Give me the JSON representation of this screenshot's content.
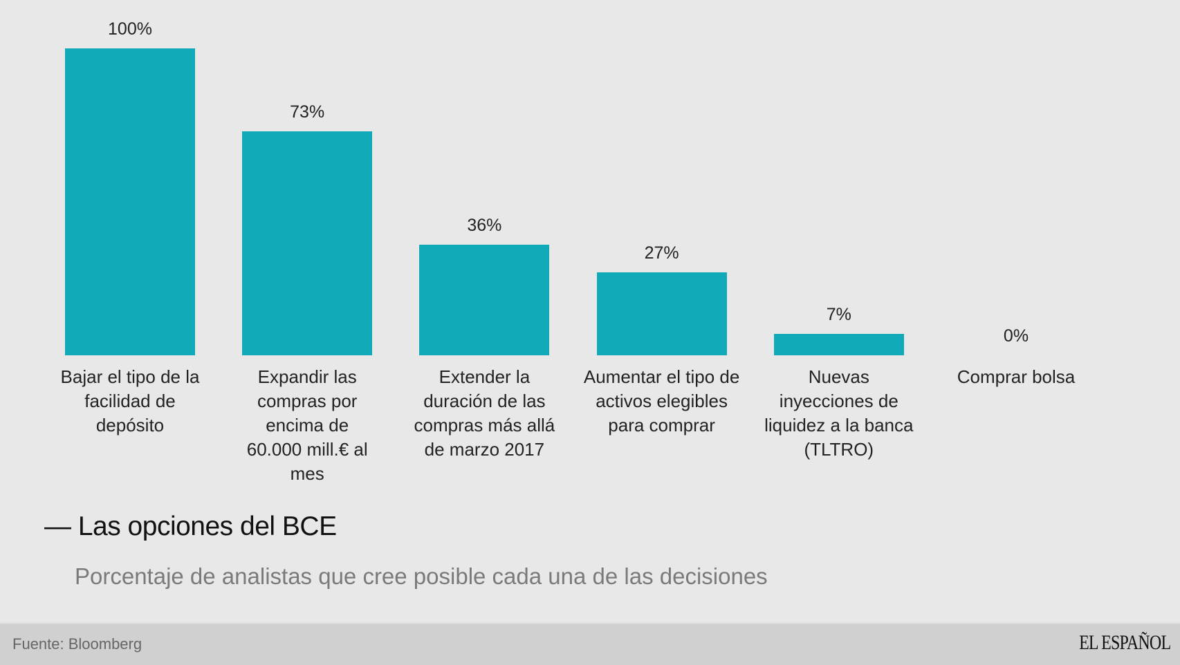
{
  "chart_data": {
    "type": "bar",
    "title": "Las opciones del BCE",
    "subtitle": "Porcentaje de analistas que cree posible cada una de las decisiones",
    "categories": [
      "Bajar el tipo de la facilidad de depósito",
      "Expandir las compras por encima de 60.000 mill.€ al mes",
      "Extender la duración de las compras más allá de marzo 2017",
      "Aumentar el tipo de activos elegibles para comprar",
      "Nuevas inyecciones de liquidez a la banca (TLTRO)",
      "Comprar bolsa"
    ],
    "values": [
      100,
      73,
      36,
      27,
      7,
      0
    ],
    "value_labels": [
      "100%",
      "73%",
      "36%",
      "27%",
      "7%",
      "0%"
    ],
    "ylim": [
      0,
      100
    ],
    "grid": false,
    "bar_color": "#10a9b8"
  },
  "header": {
    "title_dash": "—"
  },
  "footer": {
    "source": "Fuente: Bloomberg",
    "logo": "EL ESPAÑOL"
  },
  "colors": {
    "background": "#e8e8e8",
    "footer": "#d0d0d0"
  }
}
